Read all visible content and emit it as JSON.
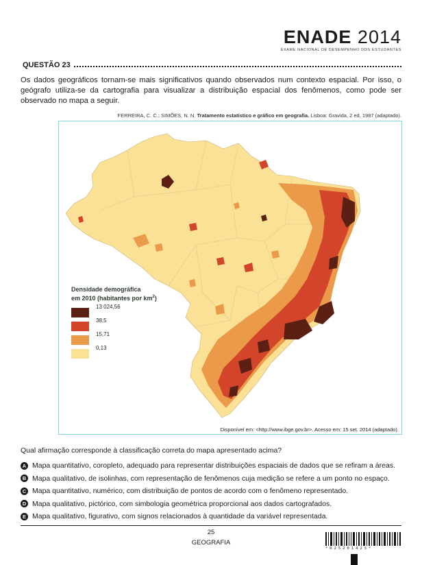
{
  "header": {
    "logo_main": "ENADE",
    "logo_year": "2014",
    "logo_sub": "EXAME NACIONAL DE DESEMPENHO DOS ESTUDANTES"
  },
  "question": {
    "number_label": "QUESTÃO 23",
    "intro": "Os dados geográficos tornam-se mais significativos quando observados num contexto espacial. Por isso, o geógrafo utiliza-se da cartografia para visualizar a distribuição espacial dos fenômenos, como pode ser observado no mapa a seguir.",
    "source_authors": "FERREIRA, C. C.; SIMÕES, N. N.",
    "source_title": "Tratamento estatístico e gráfico em geografia.",
    "source_rest": "Lisboa: Gravida, 2 ed, 1987 (adaptado).",
    "prompt": "Qual afirmação corresponde à classificação correta do mapa apresentado acima?"
  },
  "map": {
    "legend_title_line1": "Densidade demográfica",
    "legend_title_line2": "em 2010 (habitantes por km",
    "legend_title_sup": "2",
    "legend_title_end": ")",
    "legend": [
      {
        "value": "13 024,56",
        "color": "#5c1f14"
      },
      {
        "value": "38,5",
        "color": "#d2452a"
      },
      {
        "value": "15,71",
        "color": "#eb9a4a"
      },
      {
        "value": "0,13",
        "color": "#fbe196"
      }
    ],
    "credit": "Disponível em: <http://www.ibge.gov.br>. Acesso em: 15 set. 2014 (adaptado)."
  },
  "options": [
    {
      "letter": "A",
      "text": "Mapa quantitativo, coropleto, adequado para representar distribuições espaciais de dados que se refiram a áreas."
    },
    {
      "letter": "B",
      "text": "Mapa qualitativo, de isolinhas, com representação de fenômenos cuja medição se refere a um ponto no espaço."
    },
    {
      "letter": "C",
      "text": "Mapa quantitativo, numérico, com distribuição de pontos de acordo com o fenômeno representado."
    },
    {
      "letter": "D",
      "text": "Mapa qualitativo, pictórico, com simbologia geométrica proporcional aos dados cartografados."
    },
    {
      "letter": "E",
      "text": "Mapa qualitativo, figurativo, com signos relacionados à quantidade da variável representada."
    }
  ],
  "footer": {
    "page_number": "25",
    "subject": "GEOGRAFIA",
    "barcode_digits": "*R2520142S*"
  }
}
